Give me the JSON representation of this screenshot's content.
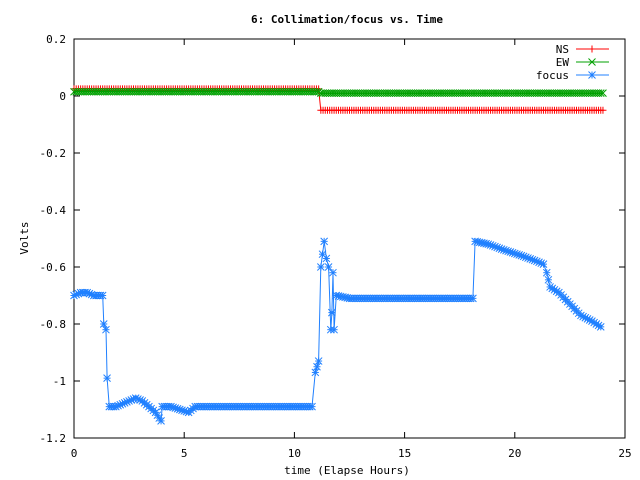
{
  "chart_data": {
    "type": "line",
    "title": "6: Collimation/focus vs. Time",
    "xlabel": "time (Elapse Hours)",
    "ylabel": "Volts",
    "xlim": [
      0,
      25
    ],
    "ylim": [
      -1.2,
      0.2
    ],
    "x_ticks": [
      0,
      5,
      10,
      15,
      20,
      25
    ],
    "x_tick_labels": [
      "0",
      "5",
      "10",
      "15",
      "20",
      "25"
    ],
    "y_ticks": [
      0.2,
      0,
      -0.2,
      -0.4,
      -0.6,
      -0.8,
      -1,
      -1.2
    ],
    "y_tick_labels": [
      "0.2",
      "0",
      "-0.2",
      "-0.4",
      "-0.6",
      "-0.8",
      "-1",
      "-1.2"
    ],
    "legend_position": "top-right",
    "grid": false,
    "series": [
      {
        "name": "NS",
        "color": "#ff0000",
        "marker": "plus",
        "points": [
          [
            0,
            0.025
          ],
          [
            11.1,
            0.025
          ],
          [
            11.2,
            -0.05
          ],
          [
            24,
            -0.05
          ]
        ]
      },
      {
        "name": "EW",
        "color": "#00a000",
        "marker": "cross",
        "points": [
          [
            0,
            0.015
          ],
          [
            11.1,
            0.015
          ],
          [
            11.2,
            0.01
          ],
          [
            24,
            0.01
          ]
        ]
      },
      {
        "name": "focus",
        "color": "#2080ff",
        "marker": "star",
        "points": [
          [
            0,
            -0.7
          ],
          [
            0.3,
            -0.69
          ],
          [
            0.6,
            -0.69
          ],
          [
            0.9,
            -0.7
          ],
          [
            1.2,
            -0.7
          ],
          [
            1.3,
            -0.7
          ],
          [
            1.35,
            -0.8
          ],
          [
            1.45,
            -0.82
          ],
          [
            1.5,
            -0.99
          ],
          [
            1.6,
            -1.09
          ],
          [
            1.9,
            -1.09
          ],
          [
            2.2,
            -1.08
          ],
          [
            2.5,
            -1.07
          ],
          [
            2.8,
            -1.06
          ],
          [
            3.1,
            -1.07
          ],
          [
            3.4,
            -1.09
          ],
          [
            3.7,
            -1.11
          ],
          [
            3.95,
            -1.14
          ],
          [
            4.0,
            -1.09
          ],
          [
            4.4,
            -1.09
          ],
          [
            4.8,
            -1.1
          ],
          [
            5.2,
            -1.11
          ],
          [
            5.5,
            -1.09
          ],
          [
            6,
            -1.09
          ],
          [
            7,
            -1.09
          ],
          [
            8,
            -1.09
          ],
          [
            9,
            -1.09
          ],
          [
            10,
            -1.09
          ],
          [
            10.8,
            -1.09
          ],
          [
            10.95,
            -0.97
          ],
          [
            11.1,
            -0.93
          ],
          [
            11.2,
            -0.6
          ],
          [
            11.35,
            -0.51
          ],
          [
            11.45,
            -0.57
          ],
          [
            11.55,
            -0.6
          ],
          [
            11.65,
            -0.82
          ],
          [
            11.7,
            -0.76
          ],
          [
            11.75,
            -0.62
          ],
          [
            11.8,
            -0.82
          ],
          [
            11.9,
            -0.7
          ],
          [
            12.5,
            -0.71
          ],
          [
            13.5,
            -0.71
          ],
          [
            14.5,
            -0.71
          ],
          [
            15.5,
            -0.71
          ],
          [
            16.5,
            -0.71
          ],
          [
            17.5,
            -0.71
          ],
          [
            18.1,
            -0.71
          ],
          [
            18.2,
            -0.51
          ],
          [
            18.8,
            -0.52
          ],
          [
            19.5,
            -0.54
          ],
          [
            20.3,
            -0.56
          ],
          [
            21,
            -0.58
          ],
          [
            21.3,
            -0.59
          ],
          [
            21.45,
            -0.62
          ],
          [
            21.6,
            -0.67
          ],
          [
            22,
            -0.69
          ],
          [
            22.5,
            -0.73
          ],
          [
            23,
            -0.77
          ],
          [
            23.5,
            -0.79
          ],
          [
            23.9,
            -0.81
          ]
        ]
      }
    ]
  }
}
